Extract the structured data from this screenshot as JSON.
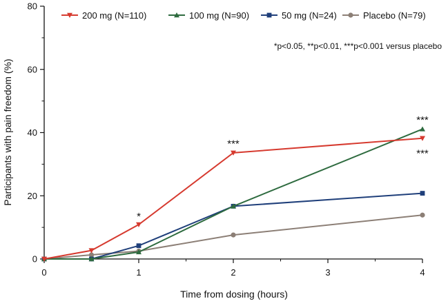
{
  "chart_data": {
    "type": "line",
    "xlabel": "Time from dosing (hours)",
    "ylabel": "Participants with pain freedom (%)",
    "xlim": [
      0,
      4
    ],
    "ylim": [
      0,
      80
    ],
    "x_ticks": [
      "0",
      "1",
      "2",
      "3",
      "4"
    ],
    "y_ticks": [
      "0",
      "20",
      "40",
      "60",
      "80"
    ],
    "series": [
      {
        "name": "200 mg (N=110)",
        "color": "#d63a2f",
        "marker": "triangle-down",
        "x": [
          0,
          0.5,
          1,
          2,
          4
        ],
        "values": [
          0,
          2.7,
          10.9,
          33.6,
          38.2
        ]
      },
      {
        "name": "100 mg (N=90)",
        "color": "#2e6b3f",
        "marker": "triangle-up",
        "x": [
          0,
          0.5,
          1,
          2,
          4
        ],
        "values": [
          0,
          0,
          2.2,
          16.7,
          41.1
        ]
      },
      {
        "name": "50 mg (N=24)",
        "color": "#1f3f7a",
        "marker": "square",
        "x": [
          0,
          0.5,
          1,
          2,
          4
        ],
        "values": [
          0,
          0,
          4.2,
          16.7,
          20.8
        ]
      },
      {
        "name": "Placebo (N=79)",
        "color": "#8c7f76",
        "marker": "circle",
        "x": [
          0,
          0.5,
          1,
          2,
          4
        ],
        "values": [
          0,
          1.3,
          2.5,
          7.6,
          13.9
        ]
      }
    ],
    "annotations": [
      {
        "text": "*",
        "x": 1,
        "y": 13.5
      },
      {
        "text": "***",
        "x": 2,
        "y": 36.5
      },
      {
        "text": "***",
        "x": 4,
        "y": 44.0
      },
      {
        "text": "***",
        "x": 4,
        "y": 33.5
      }
    ],
    "note": "*p<0.05, **p<0.01, ***p<0.001 versus placebo"
  }
}
